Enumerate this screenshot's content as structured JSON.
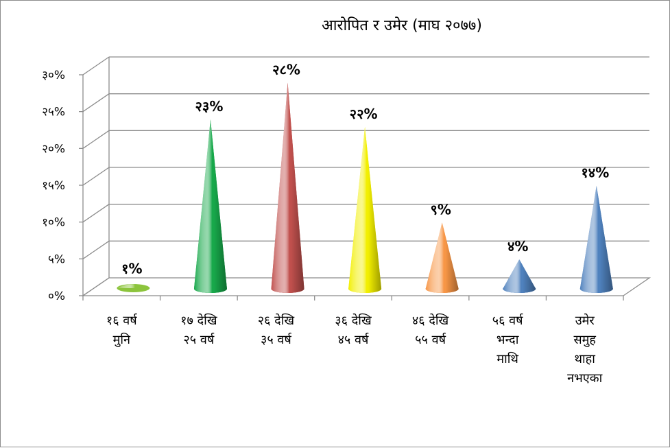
{
  "chart_data": {
    "type": "bar",
    "title": "आरोपित र उमेर (माघ २०७७)",
    "categories": [
      [
        "१६ वर्ष",
        "मुनि"
      ],
      [
        "१७ देखि",
        "२५ वर्ष"
      ],
      [
        "२६ देखि",
        "३५ वर्ष"
      ],
      [
        "३६ देखि",
        "४५ वर्ष"
      ],
      [
        "४६ देखि",
        "५५ वर्ष"
      ],
      [
        "५६ वर्ष",
        "भन्दा",
        "माथि"
      ],
      [
        "उमेर",
        "समुह",
        "थाहा",
        "नभएका"
      ]
    ],
    "values": [
      1,
      23,
      28,
      22,
      9,
      4,
      14
    ],
    "data_labels": [
      "१%",
      "२३%",
      "२८%",
      "२२%",
      "९%",
      "४%",
      "१४%"
    ],
    "colors": [
      "#8cc43c",
      "#17a84a",
      "#c0504d",
      "#f2ef00",
      "#f79646",
      "#4f81bd",
      "#4f81bd"
    ],
    "y_ticks": [
      0,
      5,
      10,
      15,
      20,
      25,
      30
    ],
    "y_tick_labels": [
      "०%",
      "५%",
      "१०%",
      "१५%",
      "२०%",
      "२५%",
      "३०%"
    ],
    "ylim": [
      0,
      30
    ],
    "grid": true,
    "legend": "none",
    "xlabel": "",
    "ylabel": ""
  }
}
